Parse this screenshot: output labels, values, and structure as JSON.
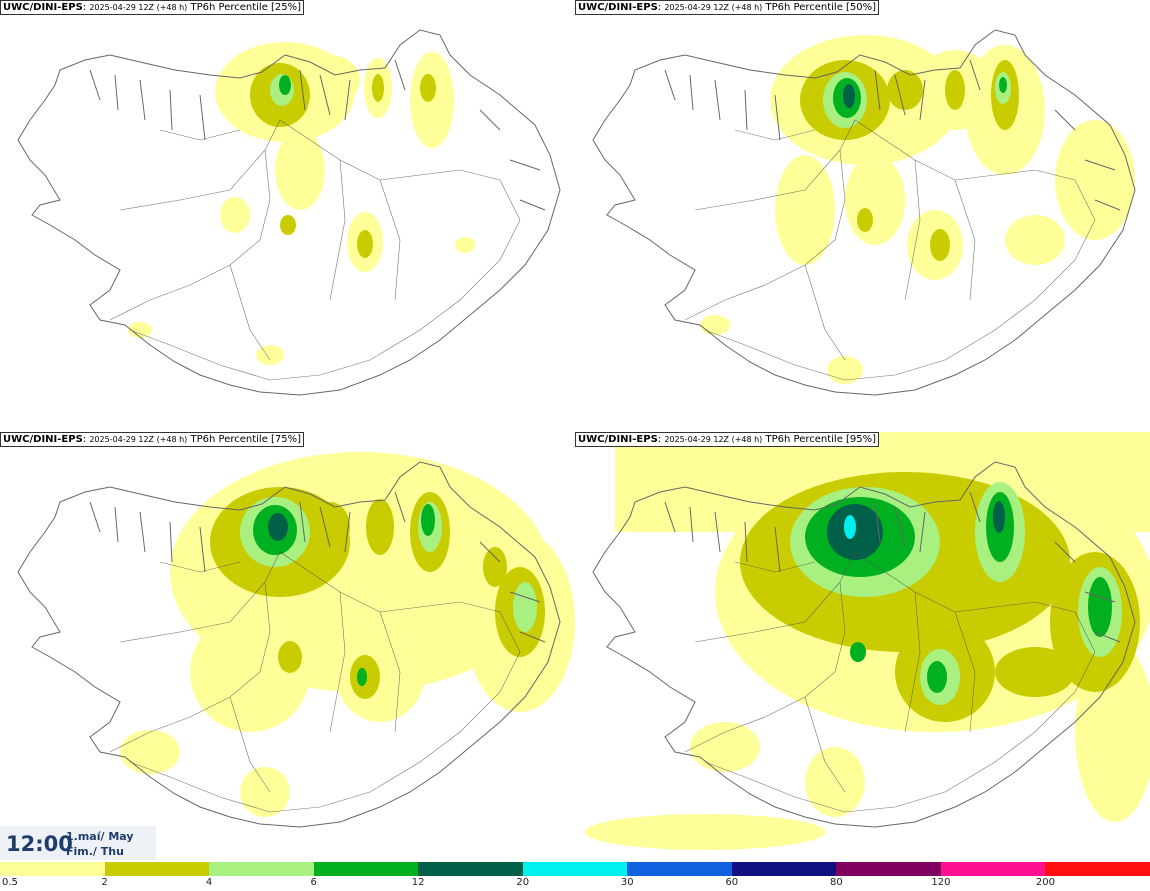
{
  "panels": [
    {
      "source": "UWC/DINI-EPS",
      "run": "2025-04-29 12Z (+48 h)",
      "field": "TP6h Percentile [25%]",
      "percentile": 25
    },
    {
      "source": "UWC/DINI-EPS",
      "run": "2025-04-29 12Z (+48 h)",
      "field": "TP6h Percentile [50%]",
      "percentile": 50
    },
    {
      "source": "UWC/DINI-EPS",
      "run": "2025-04-29 12Z (+48 h)",
      "field": "TP6h Percentile [75%]",
      "percentile": 75
    },
    {
      "source": "UWC/DINI-EPS",
      "run": "2025-04-29 12Z (+48 h)",
      "field": "TP6h Percentile [95%]",
      "percentile": 95
    }
  ],
  "valid_time": {
    "time": "12:00",
    "date_line1": "1.maí/ May",
    "date_line2": "Fim./ Thu"
  },
  "legend": {
    "colors": [
      "#ffff99",
      "#c8cc00",
      "#a8f080",
      "#00b020",
      "#006048",
      "#00f0f0",
      "#1060e0",
      "#101080",
      "#800060",
      "#ff1090",
      "#ff1010"
    ],
    "labels": [
      "0.5",
      "2",
      "4",
      "6",
      "12",
      "20",
      "30",
      "60",
      "80",
      "120",
      "200"
    ]
  },
  "colors": {
    "coastline": "#666666",
    "roads": "#555555",
    "precip_light": "#ffff99",
    "precip_mod": "#c8cc00",
    "precip_4": "#a8f080",
    "precip_6": "#00b020",
    "precip_12": "#006048",
    "precip_20": "#00f0f0"
  }
}
